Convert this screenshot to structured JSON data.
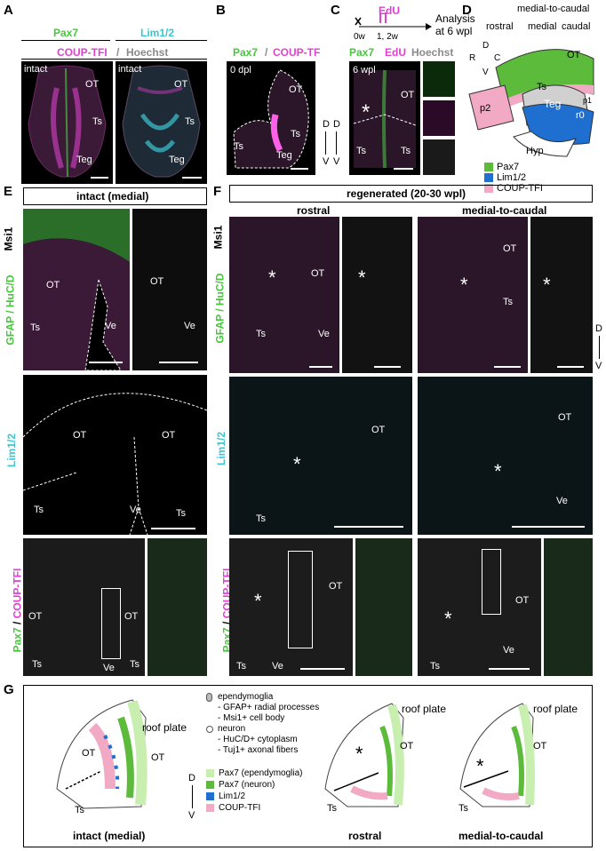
{
  "panels": {
    "A": {
      "letter": "A",
      "ch1": "Pax7",
      "ch2": "Lim1/2",
      "ch3": "COUP-TFI",
      "sep": "/",
      "ch4": "Hoechst",
      "intact": "intact",
      "OT": "OT",
      "Ts": "Ts",
      "Teg": "Teg"
    },
    "B": {
      "letter": "B",
      "ch1": "Pax7",
      "sep": "/",
      "ch2": "COUP-TF",
      "dpl": "0 dpl",
      "OT": "OT",
      "Ts": "Ts",
      "Teg": "Teg",
      "D": "D",
      "V": "V"
    },
    "C": {
      "letter": "C",
      "edu": "EdU",
      "time0": "0w",
      "time1": "1, 2w",
      "analysis": "Analysis\nat 6 wpl",
      "ch1": "Pax7",
      "ch2": "EdU",
      "ch3": "Hoechst",
      "wpl": "6 wpl",
      "OT": "OT",
      "Ts": "Ts",
      "D": "D",
      "V": "V",
      "star": "*"
    },
    "D": {
      "letter": "D",
      "axis": "medial-to-caudal",
      "rostral": "rostral",
      "medial": "medial",
      "caudal": "caudal",
      "R": "R",
      "C": "C",
      "D": "D",
      "V": "V",
      "OT": "OT",
      "Ts": "Ts",
      "Teg": "Teg",
      "p2": "p2",
      "p1": "p1",
      "r0": "r0",
      "Hyp": "Hyp",
      "legend": [
        {
          "label": "Pax7",
          "color": "#5dbb3c"
        },
        {
          "label": "Lim1/2",
          "color": "#1f6fd0"
        },
        {
          "label": "COUP-TFI",
          "color": "#f2a9c4"
        }
      ]
    },
    "E": {
      "letter": "E",
      "title": "intact (medial)",
      "row1_label_a": "Msi1",
      "row1_label_b": "GFAP / HuC/D",
      "row2_label": "Lim1/2",
      "row3_label": "Pax7 / COUP-TFI",
      "OT": "OT",
      "Ve": "Ve",
      "Ts": "Ts"
    },
    "F": {
      "letter": "F",
      "title": "regenerated (20-30 wpl)",
      "col1": "rostral",
      "col2": "medial-to-caudal",
      "row1_label_a": "Msi1",
      "row1_label_b": "GFAP / HuC/D",
      "row2_label": "Lim1/2",
      "row3_label": "Pax7 / COUP-TFI",
      "OT": "OT",
      "Ve": "Ve",
      "Ts": "Ts",
      "star": "*",
      "D": "D",
      "V": "V"
    },
    "G": {
      "letter": "G",
      "roof": "roof plate",
      "OT": "OT",
      "Ts": "Ts",
      "star": "*",
      "D": "D",
      "V": "V",
      "notes": [
        "ependymoglia",
        "- GFAP+ radial processes",
        "- Msi1+ cell body",
        "neuron",
        "- HuC/D+ cytoplasm",
        "- Tuj1+ axonal fibers"
      ],
      "legend": [
        {
          "label": "Pax7 (ependymoglia)",
          "color": "#c8eeb0"
        },
        {
          "label": "Pax7 (neuron)",
          "color": "#5dbb3c"
        },
        {
          "label": "Lim1/2",
          "color": "#1f6fd0"
        },
        {
          "label": "COUP-TFI",
          "color": "#f2a9c4"
        }
      ],
      "captions": [
        "intact (medial)",
        "rostral",
        "medial-to-caudal"
      ]
    }
  }
}
